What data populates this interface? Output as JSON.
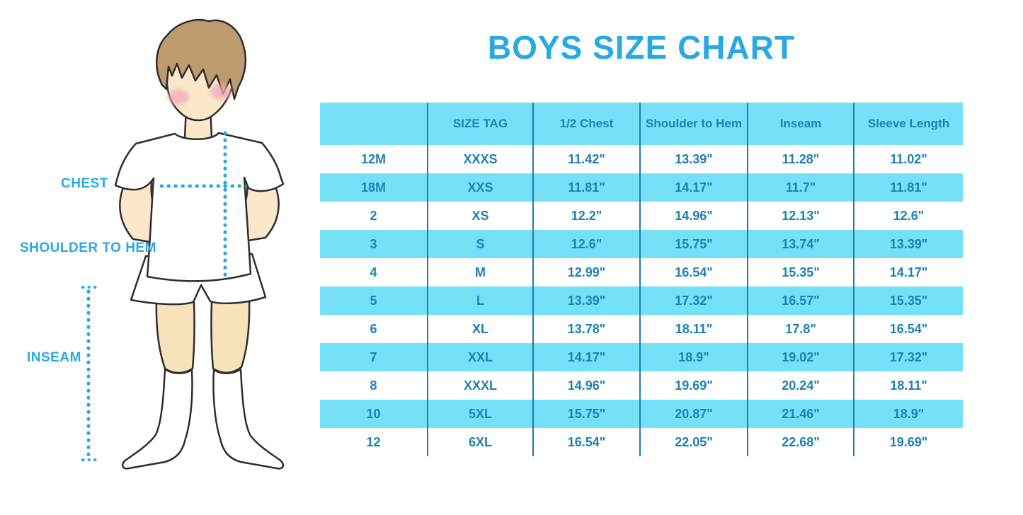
{
  "chart_data": {
    "type": "table",
    "title": "BOYS SIZE CHART",
    "columns": [
      "",
      "SIZE TAG",
      "1/2 Chest",
      "Shoulder to Hem",
      "Inseam",
      "Sleeve Length"
    ],
    "rows": [
      [
        "12M",
        "XXXS",
        "11.42\"",
        "13.39\"",
        "11.28\"",
        "11.02\""
      ],
      [
        "18M",
        "XXS",
        "11.81\"",
        "14.17\"",
        "11.7\"",
        "11.81\""
      ],
      [
        "2",
        "XS",
        "12.2\"",
        "14.96\"",
        "12.13\"",
        "12.6\""
      ],
      [
        "3",
        "S",
        "12.6\"",
        "15.75\"",
        "13.74\"",
        "13.39\""
      ],
      [
        "4",
        "M",
        "12.99\"",
        "16.54\"",
        "15.35\"",
        "14.17\""
      ],
      [
        "5",
        "L",
        "13.39\"",
        "17.32\"",
        "16.57\"",
        "15.35\""
      ],
      [
        "6",
        "XL",
        "13.78\"",
        "18.11\"",
        "17.8\"",
        "16.54\""
      ],
      [
        "7",
        "XXL",
        "14.17\"",
        "18.9\"",
        "19.02\"",
        "17.32\""
      ],
      [
        "8",
        "XXXL",
        "14.96\"",
        "19.69\"",
        "20.24\"",
        "18.11\""
      ],
      [
        "10",
        "5XL",
        "15.75\"",
        "20.87\"",
        "21.46\"",
        "18.9\""
      ],
      [
        "12",
        "6XL",
        "16.54\"",
        "22.05\"",
        "22.68\"",
        "19.69\""
      ]
    ],
    "layout": {
      "striped": true,
      "stripe_colors": [
        "#ffffff",
        "#74E1F9"
      ],
      "header_background": "#74E1F9"
    }
  },
  "figure": {
    "labels": {
      "chest": "CHEST",
      "shoulder_to_hem": "SHOULDER TO HEM",
      "inseam": "INSEAM"
    }
  },
  "colors": {
    "accent": "#29A9E1",
    "cyan": "#74E1F9",
    "table_text": "#1D81B0",
    "divider": "#1E7FAD",
    "outline": "#2E2E2E",
    "hair": "#BD9B6F",
    "skin": "#FBE7C9",
    "skin_leg": "#F8E2BA",
    "cheek": "#F2A7B7"
  }
}
